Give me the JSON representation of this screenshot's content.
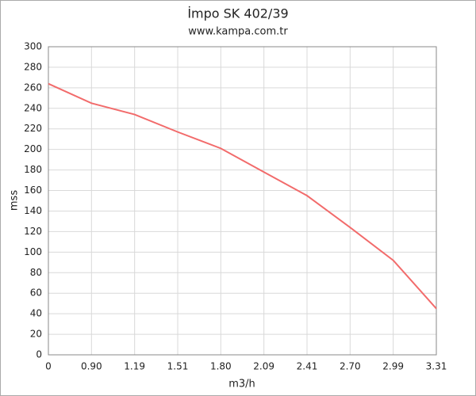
{
  "chart_data": {
    "type": "line",
    "title": "İmpo SK 402/39",
    "subtitle": "www.kampa.com.tr",
    "x_label": "m3/h",
    "y_label": "mss",
    "categories": [
      "0",
      "0.90",
      "1.19",
      "1.51",
      "1.80",
      "2.09",
      "2.41",
      "2.70",
      "2.99",
      "3.31"
    ],
    "series": [
      {
        "name": "mss",
        "color": "#f26b6b",
        "values": [
          264,
          245,
          234,
          217,
          201,
          178,
          155,
          124,
          92,
          45
        ]
      }
    ],
    "ylim": [
      0,
      300
    ],
    "yticks": [
      0,
      20,
      40,
      60,
      80,
      100,
      120,
      140,
      160,
      180,
      200,
      220,
      240,
      260,
      280,
      300
    ],
    "grid": true
  }
}
